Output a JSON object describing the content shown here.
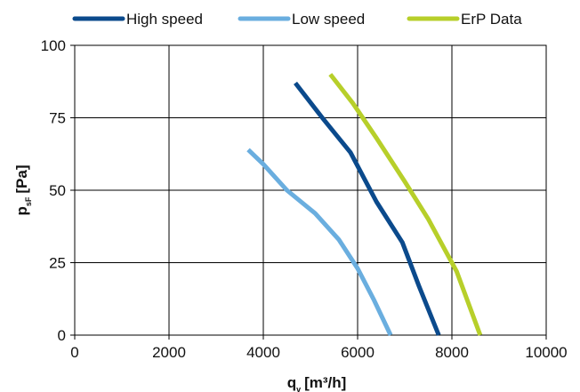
{
  "chart_data": {
    "type": "line",
    "title": "",
    "xlabel": {
      "main": "q",
      "sub": "v",
      "unit": "[m³/h]"
    },
    "ylabel": {
      "main": "p",
      "sub": "sF",
      "unit": "[Pa]"
    },
    "xlim": [
      0,
      10000
    ],
    "ylim": [
      0,
      100
    ],
    "x_ticks": [
      0,
      2000,
      4000,
      6000,
      8000,
      10000
    ],
    "y_ticks": [
      0,
      25,
      50,
      75,
      100
    ],
    "grid": true,
    "legend_position": "top",
    "series": [
      {
        "name": "High speed",
        "color": "#0b4a8c",
        "points": [
          [
            4680,
            87
          ],
          [
            5250,
            75
          ],
          [
            5850,
            63
          ],
          [
            6400,
            46
          ],
          [
            6950,
            32
          ],
          [
            7300,
            17
          ],
          [
            7720,
            0
          ]
        ]
      },
      {
        "name": "Low speed",
        "color": "#6aaedf",
        "points": [
          [
            3680,
            64
          ],
          [
            4000,
            59
          ],
          [
            4500,
            50
          ],
          [
            5100,
            42
          ],
          [
            5600,
            33
          ],
          [
            6000,
            23
          ],
          [
            6350,
            12
          ],
          [
            6700,
            0
          ]
        ]
      },
      {
        "name": "ErP Data",
        "color": "#b7cf2a",
        "points": [
          [
            5420,
            90
          ],
          [
            5900,
            80
          ],
          [
            6400,
            68
          ],
          [
            7000,
            53
          ],
          [
            7500,
            40
          ],
          [
            8100,
            22
          ],
          [
            8600,
            0
          ]
        ]
      }
    ]
  }
}
